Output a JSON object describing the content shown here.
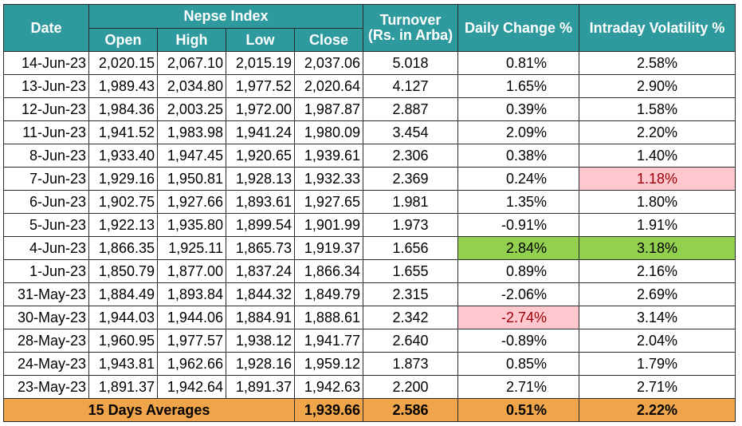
{
  "header": {
    "date": "Date",
    "index_group": "Nepse Index",
    "open": "Open",
    "high": "High",
    "low": "Low",
    "close": "Close",
    "turnover_line1": "Turnover",
    "turnover_line2": "(Rs. in Arba)",
    "daily_change": "Daily Change %",
    "volatility": "Intraday Volatility %"
  },
  "rows": [
    {
      "date": "14-Jun-23",
      "open": "2,020.15",
      "high": "2,067.10",
      "low": "2,015.19",
      "close": "2,037.06",
      "turnover": "5.018",
      "change": "0.81%",
      "volatility": "2.58%"
    },
    {
      "date": "13-Jun-23",
      "open": "1,989.43",
      "high": "2,034.80",
      "low": "1,977.52",
      "close": "2,020.64",
      "turnover": "4.127",
      "change": "1.65%",
      "volatility": "2.90%"
    },
    {
      "date": "12-Jun-23",
      "open": "1,984.36",
      "high": "2,003.25",
      "low": "1,972.00",
      "close": "1,987.87",
      "turnover": "2.887",
      "change": "0.39%",
      "volatility": "1.58%"
    },
    {
      "date": "11-Jun-23",
      "open": "1,941.52",
      "high": "1,983.98",
      "low": "1,941.24",
      "close": "1,980.09",
      "turnover": "3.454",
      "change": "2.09%",
      "volatility": "2.20%"
    },
    {
      "date": "8-Jun-23",
      "open": "1,933.40",
      "high": "1,947.45",
      "low": "1,920.65",
      "close": "1,939.61",
      "turnover": "2.306",
      "change": "0.38%",
      "volatility": "1.40%"
    },
    {
      "date": "7-Jun-23",
      "open": "1,929.16",
      "high": "1,950.81",
      "low": "1,928.13",
      "close": "1,932.33",
      "turnover": "2.369",
      "change": "0.24%",
      "volatility": "1.18%",
      "vol_style": "red"
    },
    {
      "date": "6-Jun-23",
      "open": "1,902.75",
      "high": "1,927.66",
      "low": "1,893.61",
      "close": "1,927.65",
      "turnover": "1.981",
      "change": "1.35%",
      "volatility": "1.80%"
    },
    {
      "date": "5-Jun-23",
      "open": "1,922.13",
      "high": "1,935.80",
      "low": "1,899.54",
      "close": "1,901.99",
      "turnover": "1.973",
      "change": "-0.91%",
      "volatility": "1.91%"
    },
    {
      "date": "4-Jun-23",
      "open": "1,866.35",
      "high": "1,925.11",
      "low": "1,865.73",
      "close": "1,919.37",
      "turnover": "1.656",
      "change": "2.84%",
      "volatility": "3.18%",
      "change_style": "green",
      "vol_style": "green"
    },
    {
      "date": "1-Jun-23",
      "open": "1,850.79",
      "high": "1,877.00",
      "low": "1,837.24",
      "close": "1,866.34",
      "turnover": "1.655",
      "change": "0.89%",
      "volatility": "2.16%"
    },
    {
      "date": "31-May-23",
      "open": "1,884.49",
      "high": "1,893.84",
      "low": "1,844.32",
      "close": "1,849.79",
      "turnover": "2.315",
      "change": "-2.06%",
      "volatility": "2.69%"
    },
    {
      "date": "30-May-23",
      "open": "1,944.03",
      "high": "1,944.06",
      "low": "1,884.91",
      "close": "1,888.61",
      "turnover": "2.342",
      "change": "-2.74%",
      "volatility": "3.14%",
      "change_style": "red"
    },
    {
      "date": "28-May-23",
      "open": "1,960.95",
      "high": "1,977.57",
      "low": "1,938.12",
      "close": "1,941.77",
      "turnover": "2.640",
      "change": "-0.89%",
      "volatility": "2.04%"
    },
    {
      "date": "24-May-23",
      "open": "1,943.81",
      "high": "1,962.66",
      "low": "1,928.16",
      "close": "1,959.12",
      "turnover": "1.873",
      "change": "0.85%",
      "volatility": "1.79%"
    },
    {
      "date": "23-May-23",
      "open": "1,891.37",
      "high": "1,942.64",
      "low": "1,891.37",
      "close": "1,942.63",
      "turnover": "2.200",
      "change": "2.71%",
      "volatility": "2.71%"
    }
  ],
  "footer": {
    "label": "15 Days Averages",
    "close": "1,939.66",
    "turnover": "2.586",
    "change": "0.51%",
    "volatility": "2.22%"
  },
  "colors": {
    "header_bg": "#2f9a9e",
    "footer_bg": "#f0a54a",
    "highlight_red_bg": "#ffc7ce",
    "highlight_red_text": "#9c0006",
    "highlight_green_bg": "#92d050"
  }
}
